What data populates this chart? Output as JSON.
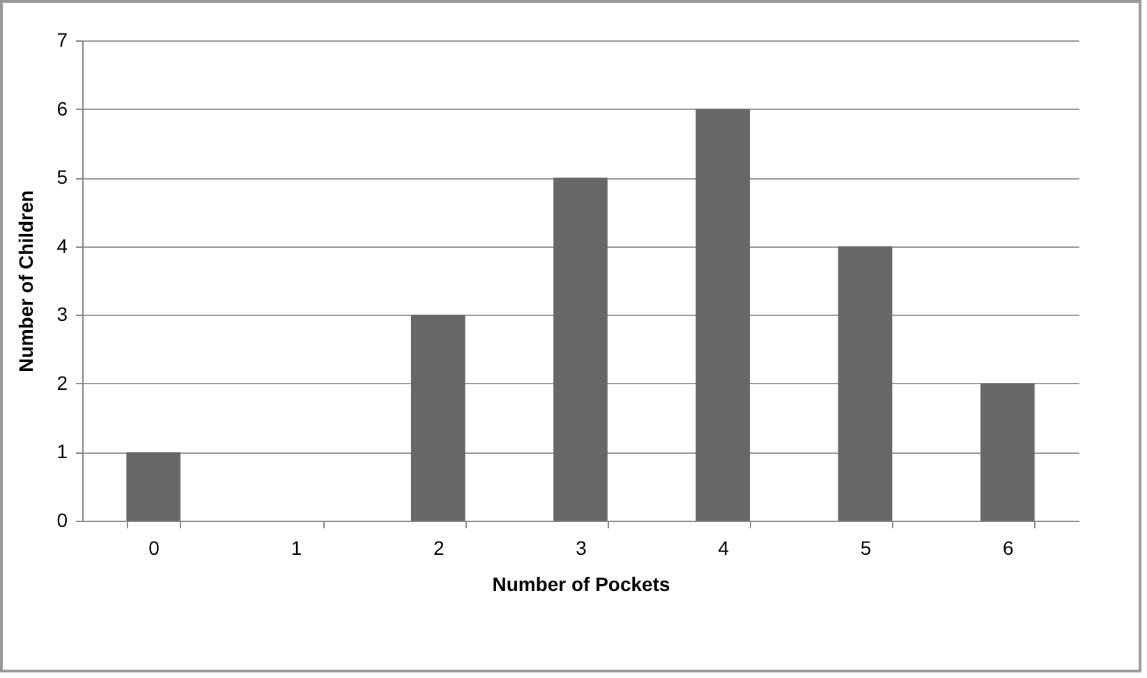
{
  "chart_data": {
    "type": "bar",
    "xlabel": "Number of Pockets",
    "ylabel": "Number of Children",
    "categories": [
      "0",
      "1",
      "2",
      "3",
      "4",
      "5",
      "6"
    ],
    "values": [
      1,
      0,
      3,
      5,
      6,
      4,
      2
    ],
    "color": "#676767",
    "ylim": [
      0,
      7
    ],
    "yticks": [
      0,
      1,
      2,
      3,
      4,
      5,
      6,
      7
    ],
    "grid": "y"
  }
}
